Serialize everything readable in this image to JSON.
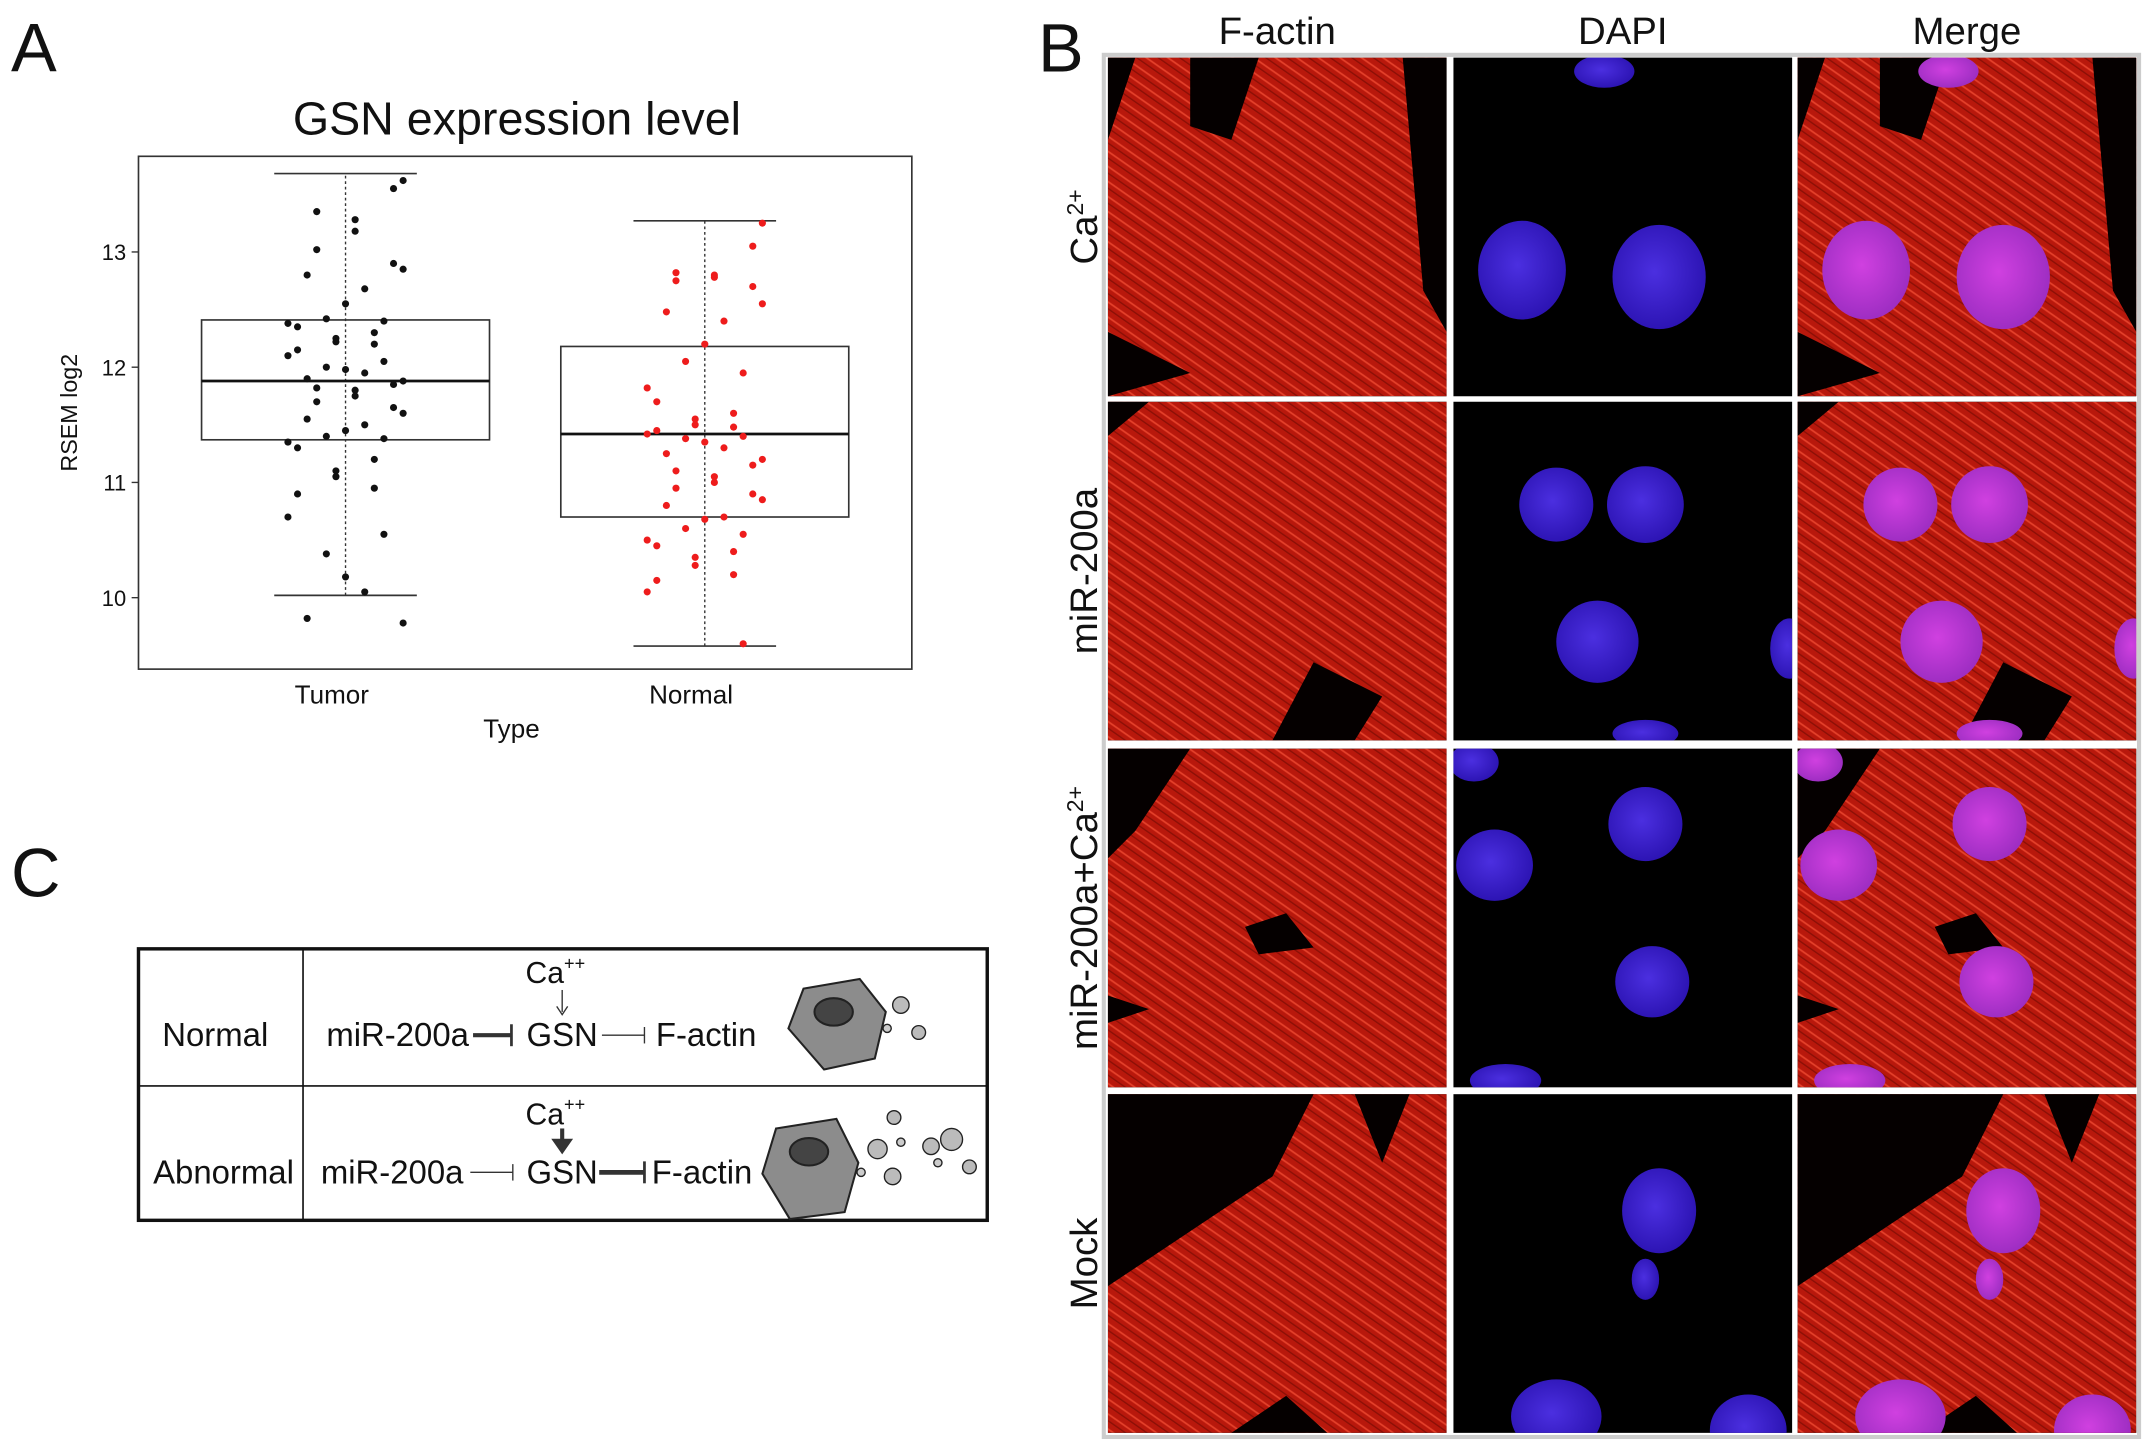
{
  "panels": {
    "a": "A",
    "b": "B",
    "c": "C"
  },
  "chart_data": {
    "type": "box",
    "title": "GSN expression level",
    "x_label": "Type",
    "y_label": "RSEM log2",
    "categories": [
      "Tumor",
      "Normal"
    ],
    "boxes": [
      {
        "low": 10.02,
        "q1": 11.37,
        "median": 11.88,
        "q3": 12.41,
        "high": 13.68
      },
      {
        "low": 9.58,
        "q1": 10.7,
        "median": 11.42,
        "q3": 12.18,
        "high": 13.27
      }
    ],
    "points": [
      [
        13.62,
        13.55,
        13.35,
        13.28,
        13.18,
        13.02,
        12.9,
        12.85,
        12.8,
        12.68,
        12.55,
        12.42,
        12.4,
        12.38,
        12.35,
        12.3,
        12.25,
        12.22,
        12.2,
        12.15,
        12.1,
        12.05,
        12.0,
        11.98,
        11.95,
        11.9,
        11.88,
        11.85,
        11.82,
        11.8,
        11.75,
        11.7,
        11.65,
        11.6,
        11.55,
        11.5,
        11.45,
        11.4,
        11.38,
        11.35,
        11.3,
        11.2,
        11.1,
        11.05,
        10.95,
        10.9,
        10.7,
        10.55,
        10.38,
        10.18,
        10.05,
        9.82,
        9.78
      ],
      [
        13.25,
        13.05,
        12.82,
        12.8,
        12.78,
        12.75,
        12.7,
        12.55,
        12.48,
        12.4,
        12.2,
        12.05,
        11.95,
        11.82,
        11.7,
        11.6,
        11.55,
        11.5,
        11.48,
        11.45,
        11.42,
        11.4,
        11.38,
        11.35,
        11.3,
        11.25,
        11.2,
        11.15,
        11.1,
        11.05,
        11.0,
        10.95,
        10.9,
        10.85,
        10.8,
        10.7,
        10.68,
        10.6,
        10.55,
        10.5,
        10.45,
        10.4,
        10.35,
        10.28,
        10.2,
        10.15,
        10.05,
        9.6
      ]
    ],
    "point_colors": [
      "#111111",
      "#ee1c1c"
    ],
    "ylim": [
      9.38,
      13.83
    ],
    "yticks": [
      10,
      11,
      12,
      13
    ]
  },
  "microscopy": {
    "columns": [
      "F-actin",
      "DAPI",
      "Merge"
    ],
    "rows": [
      {
        "text": "Ca",
        "sup": "2+"
      },
      {
        "text": "miR-200a"
      },
      {
        "text": "miR-200a+Ca",
        "sup": "2+"
      },
      {
        "text": "Mock"
      }
    ]
  },
  "diagram": {
    "rows": [
      {
        "label": "Normal",
        "inhibitor": "miR-200a",
        "target": "GSN",
        "effector": "F-actin",
        "ion": {
          "text": "Ca",
          "sup": "++"
        }
      },
      {
        "label": "Abnormal",
        "inhibitor": "miR-200a",
        "target": "GSN",
        "effector": "F-actin",
        "ion": {
          "text": "Ca",
          "sup": "++"
        }
      }
    ]
  }
}
